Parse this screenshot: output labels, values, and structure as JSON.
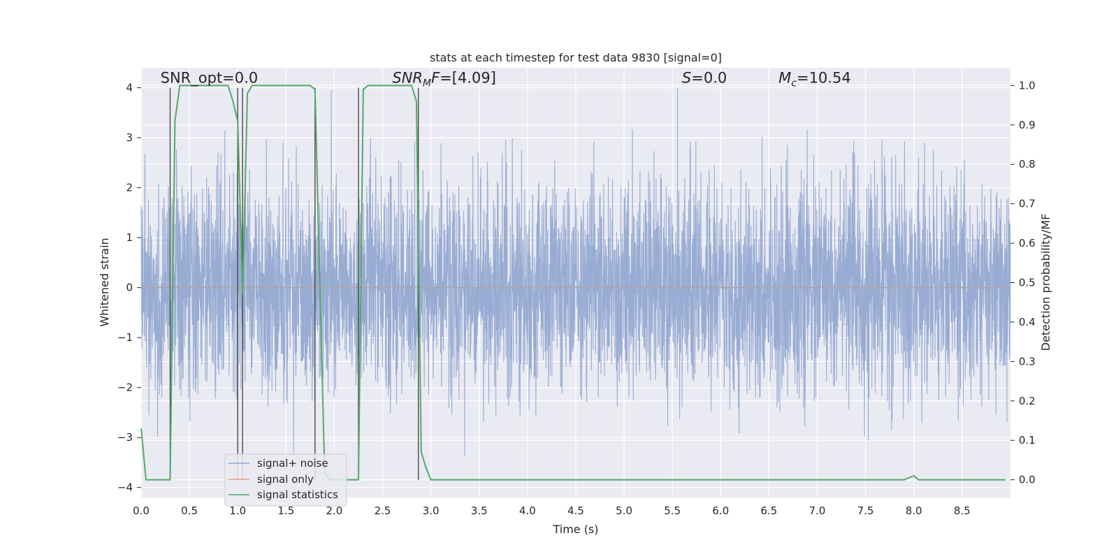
{
  "chart_data": {
    "type": "line",
    "title": "stats at each timestep for test data 9830 [signal=0]",
    "xlabel": "Time (s)",
    "ylabel": "Whitened strain",
    "y2label": "Detection probability/MF",
    "xlim": [
      0,
      9
    ],
    "ylim": [
      -4.2,
      4.4
    ],
    "y2lim": [
      -0.045,
      1.045
    ],
    "xticks": [
      "0.0",
      "0.5",
      "1.0",
      "1.5",
      "2.0",
      "2.5",
      "3.0",
      "3.5",
      "4.0",
      "4.5",
      "5.0",
      "5.5",
      "6.0",
      "6.5",
      "7.0",
      "7.5",
      "8.0",
      "8.5"
    ],
    "yticks": [
      "−4",
      "−3",
      "−2",
      "−1",
      "0",
      "1",
      "2",
      "3",
      "4"
    ],
    "y2ticks": [
      "0.0",
      "0.1",
      "0.2",
      "0.3",
      "0.4",
      "0.5",
      "0.6",
      "0.7",
      "0.8",
      "0.9",
      "1.0"
    ],
    "grid": true,
    "legend_position": "lower-left",
    "annotations": [
      {
        "html": "SNR_opt=0.0",
        "x": 0.2,
        "y": 4.1
      },
      {
        "html": "<tspan font-style=\"italic\">SNR</tspan><tspan font-style=\"italic\" font-size=\"14\" dy=\"5\">M</tspan><tspan font-style=\"italic\" dy=\"-5\">F</tspan><tspan>=[4.09]</tspan>",
        "x": 2.6,
        "y": 4.1
      },
      {
        "html": "<tspan font-style=\"italic\">S</tspan><tspan>=0.0</tspan>",
        "x": 5.6,
        "y": 4.1
      },
      {
        "html": "<tspan font-style=\"italic\">M</tspan><tspan font-style=\"italic\" font-size=\"14\" dy=\"5\">c</tspan><tspan dy=\"-5\">=10.54</tspan>",
        "x": 6.6,
        "y": 4.1
      }
    ],
    "vlines": [
      0.3,
      1.0,
      1.05,
      1.8,
      2.25,
      2.87
    ],
    "series": [
      {
        "name": "signal+ noise",
        "color": "#8fa5cf",
        "kind": "noise",
        "amplitude_sigma": 1.05,
        "spike_max": 4.0,
        "note_count": 4500
      },
      {
        "name": "signal only",
        "color": "#e8a08a",
        "values": []
      },
      {
        "name": "signal statistics",
        "color": "#55a868",
        "axis": "right",
        "x": [
          0.0,
          0.05,
          0.1,
          0.15,
          0.2,
          0.25,
          0.3,
          0.35,
          0.4,
          0.45,
          0.5,
          0.55,
          0.6,
          0.65,
          0.7,
          0.75,
          0.8,
          0.85,
          0.9,
          0.95,
          1.0,
          1.05,
          1.1,
          1.15,
          1.2,
          1.25,
          1.3,
          1.35,
          1.4,
          1.45,
          1.5,
          1.55,
          1.6,
          1.65,
          1.7,
          1.75,
          1.8,
          1.85,
          1.9,
          1.95,
          2.0,
          2.05,
          2.1,
          2.15,
          2.2,
          2.25,
          2.3,
          2.35,
          2.4,
          2.45,
          2.5,
          2.55,
          2.6,
          2.65,
          2.7,
          2.75,
          2.8,
          2.85,
          2.9,
          2.95,
          3.0,
          3.5,
          4.0,
          4.5,
          5.0,
          5.5,
          6.0,
          6.5,
          7.0,
          7.5,
          7.9,
          7.95,
          8.0,
          8.05,
          8.1,
          8.5,
          8.95
        ],
        "values": [
          0.13,
          0.0,
          0.0,
          0.0,
          0.0,
          0.0,
          0.0,
          0.91,
          1.0,
          1.0,
          1.0,
          1.0,
          1.0,
          1.0,
          1.0,
          1.0,
          1.0,
          1.0,
          1.0,
          0.96,
          0.91,
          0.47,
          0.98,
          1.0,
          1.0,
          1.0,
          1.0,
          1.0,
          1.0,
          1.0,
          1.0,
          1.0,
          1.0,
          1.0,
          1.0,
          1.0,
          0.99,
          0.5,
          0.02,
          0.0,
          0.0,
          0.0,
          0.0,
          0.0,
          0.0,
          0.0,
          0.99,
          1.0,
          1.0,
          1.0,
          1.0,
          1.0,
          1.0,
          1.0,
          1.0,
          1.0,
          1.0,
          0.96,
          0.07,
          0.03,
          0.0,
          0.0,
          0.0,
          0.0,
          0.0,
          0.0,
          0.0,
          0.0,
          0.0,
          0.0,
          0.0,
          0.005,
          0.01,
          0.0,
          0.0,
          0.0,
          0.0
        ]
      }
    ]
  },
  "legend": {
    "entries": [
      "signal+ noise",
      "signal only",
      "signal statistics"
    ]
  }
}
